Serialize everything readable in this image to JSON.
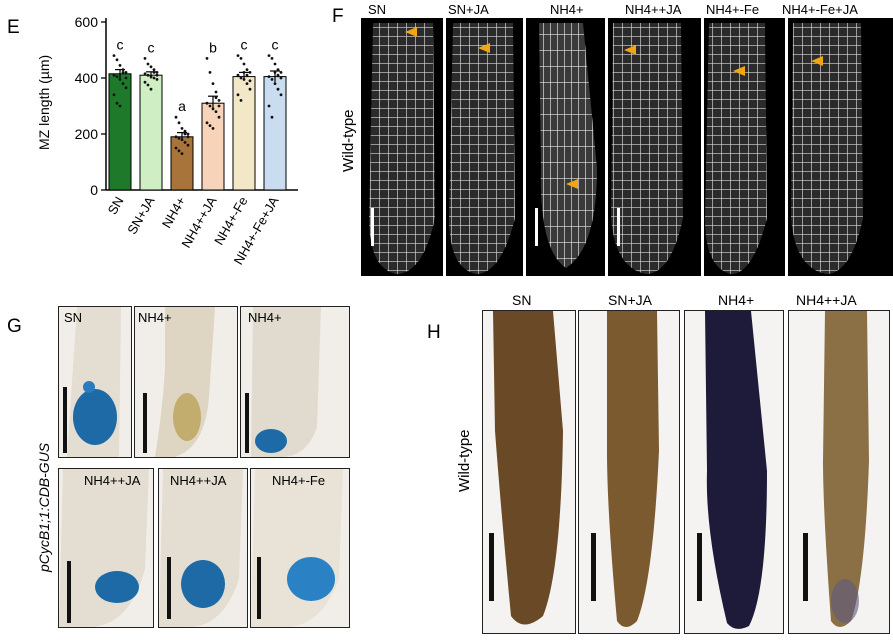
{
  "panels": {
    "E": {
      "letter": "E",
      "ylabel": "MZ length (µm)",
      "yticks": [
        "0",
        "200",
        "400",
        "600"
      ]
    },
    "F": {
      "letter": "F",
      "row_label": "Wild-type",
      "titles": [
        "SN",
        "SN+JA",
        "NH4+",
        "NH4++JA",
        "NH4+-Fe",
        "NH4+-Fe+JA"
      ]
    },
    "G": {
      "letter": "G",
      "row_label": "pCycB1;1:CDB-GUS",
      "titles": [
        "SN",
        "NH4+",
        "NH4+",
        "NH4++JA",
        "NH4++JA",
        "NH4+-Fe"
      ]
    },
    "H": {
      "letter": "H",
      "row_label": "Wild-type",
      "titles": [
        "SN",
        "SN+JA",
        "NH4+",
        "NH4++JA"
      ]
    }
  },
  "chart_data": {
    "type": "bar",
    "title": "",
    "xlabel": "",
    "ylabel": "MZ length (µm)",
    "ylim": [
      0,
      600
    ],
    "categories": [
      "SN",
      "SN+JA",
      "NH4+",
      "NH4++JA",
      "NH4+-Fe",
      "NH4+-Fe+JA"
    ],
    "values": [
      415,
      410,
      190,
      310,
      405,
      405
    ],
    "errors": [
      15,
      12,
      15,
      25,
      15,
      20
    ],
    "significance": [
      "c",
      "c",
      "a",
      "b",
      "c",
      "c"
    ],
    "colors": [
      "#1e7a2a",
      "#cfeec3",
      "#a8743a",
      "#f7d3b9",
      "#f2e8c8",
      "#c9dcf0"
    ],
    "points": [
      [
        480,
        465,
        445,
        430,
        420,
        410,
        405,
        395,
        380,
        365,
        340,
        310,
        300,
        420,
        400
      ],
      [
        470,
        450,
        440,
        430,
        420,
        415,
        410,
        405,
        400,
        395,
        385,
        375,
        360,
        420,
        410
      ],
      [
        260,
        240,
        220,
        210,
        200,
        190,
        185,
        180,
        170,
        160,
        150,
        140,
        130,
        200,
        190
      ],
      [
        470,
        420,
        380,
        350,
        320,
        310,
        300,
        290,
        280,
        260,
        240,
        230,
        220,
        330,
        300
      ],
      [
        480,
        470,
        450,
        430,
        420,
        410,
        400,
        395,
        380,
        360,
        340,
        320,
        420,
        410,
        390
      ],
      [
        480,
        470,
        450,
        430,
        420,
        405,
        395,
        380,
        360,
        340,
        300,
        260,
        420,
        410,
        400
      ]
    ]
  }
}
